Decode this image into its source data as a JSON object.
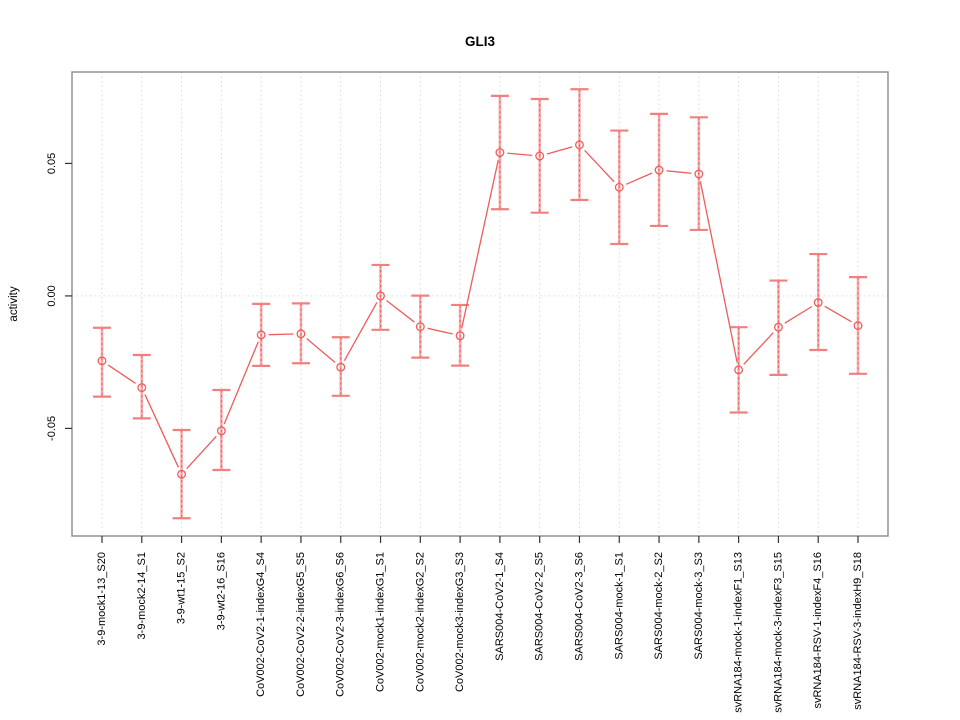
{
  "figure": {
    "title": "GLI3",
    "ylabel": "activity"
  },
  "chart_data": {
    "type": "line",
    "title": "GLI3",
    "xlabel": "",
    "ylabel": "activity",
    "legend_position": "none",
    "marker": "open-circle",
    "grid": {
      "vertical_per_category": true,
      "horizontal_zero_line": true,
      "style": "dotted"
    },
    "categories": [
      "3-9-mock1-13_S20",
      "3-9-mock2-14_S1",
      "3-9-wt1-15_S2",
      "3-9-wt2-16_S16",
      "CoV002-CoV2-1-indexG4_S4",
      "CoV002-CoV2-2-indexG5_S5",
      "CoV002-CoV2-3-indexG6_S6",
      "CoV002-mock1-indexG1_S1",
      "CoV002-mock2-indexG2_S2",
      "CoV002-mock3-indexG3_S3",
      "SARS004-CoV2-1_S4",
      "SARS004-CoV2-2_S5",
      "SARS004-CoV2-3_S6",
      "SARS004-mock-1_S1",
      "SARS004-mock-2_S2",
      "SARS004-mock-3_S3",
      "svRNA184-mock-1-indexF1_S13",
      "svRNA184-mock-3-indexF3_S15",
      "svRNA184-RSV-1-indexF4_S16",
      "svRNA184-RSV-3-indexH9_S18"
    ],
    "series": [
      {
        "name": "activity",
        "values": [
          -0.0245,
          -0.0346,
          -0.0673,
          -0.0509,
          -0.0147,
          -0.0143,
          -0.0269,
          0.0,
          -0.0116,
          -0.015,
          0.0541,
          0.0528,
          0.057,
          0.041,
          0.0475,
          0.046,
          -0.0279,
          -0.0118,
          -0.0025,
          -0.0112
        ],
        "error_low": [
          -0.038,
          -0.0462,
          -0.0839,
          -0.0657,
          -0.0264,
          -0.0254,
          -0.0377,
          -0.0128,
          -0.0233,
          -0.0263,
          0.0327,
          0.0314,
          0.0362,
          0.0196,
          0.0264,
          0.0249,
          -0.044,
          -0.0298,
          -0.0204,
          -0.0294
        ],
        "error_high": [
          -0.012,
          -0.0223,
          -0.0506,
          -0.0355,
          -0.003,
          -0.0028,
          -0.0156,
          0.0117,
          0.0001,
          -0.0034,
          0.0755,
          0.0743,
          0.078,
          0.0624,
          0.0687,
          0.0674,
          -0.0118,
          0.0058,
          0.0158,
          0.0071
        ]
      }
    ],
    "yticks": [
      -0.05,
      0,
      0.05
    ],
    "ytick_labels": [
      "-0.05",
      "0.00",
      "0.05"
    ],
    "ylim": [
      -0.0906,
      0.0845
    ],
    "colors": {
      "series_line": "#ee5c5c",
      "marker_stroke": "#ee5c5c",
      "error_cap": "#f08080",
      "error_bar_light": "#f6abab",
      "error_bar_dash": "#ef6060",
      "grid": "#d9d9d9",
      "plot_border": "#8a8a8a",
      "tick": "#333333",
      "text": "#000000"
    }
  }
}
